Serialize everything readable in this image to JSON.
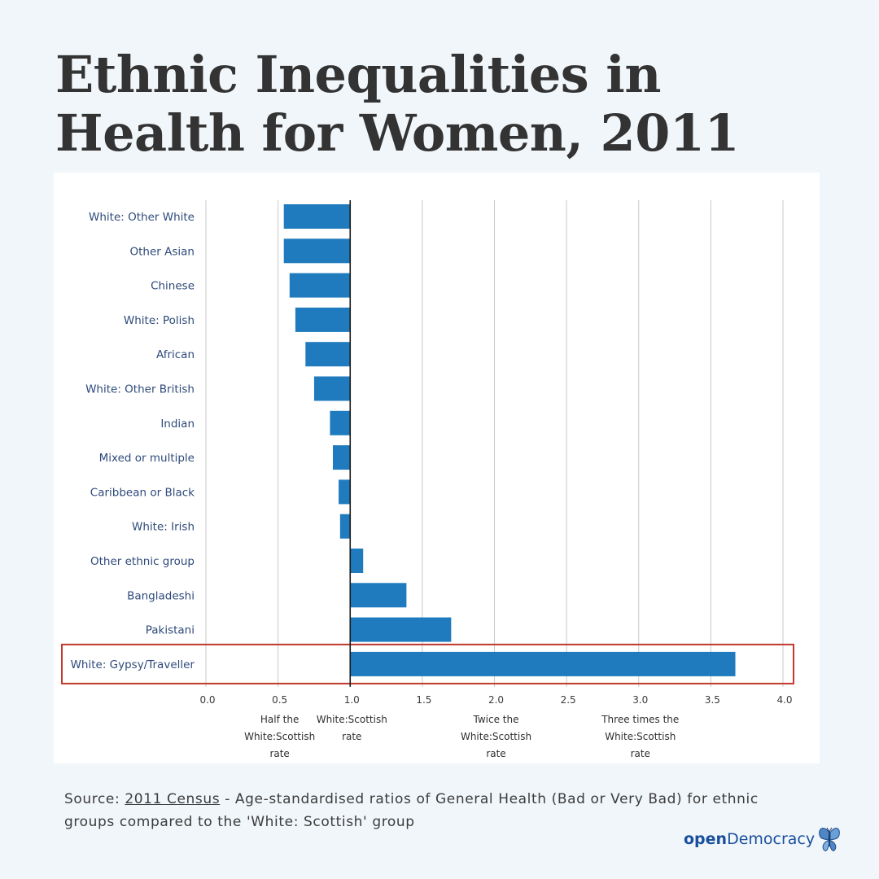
{
  "title": "Ethnic Inequalities in Health for Women, 2011",
  "source": {
    "prefix": "Source: ",
    "link_text": "2011 Census",
    "suffix": " - Age-standardised ratios of General Health (Bad or Very Bad) for ethnic groups compared to the 'White: Scottish' group"
  },
  "logo": {
    "open": "open",
    "democracy": "Democracy",
    "icon": "butterfly-icon"
  },
  "chart_data": {
    "type": "bar",
    "orientation": "horizontal",
    "baseline": 1.0,
    "categories": [
      "White: Other White",
      "Other Asian",
      "Chinese",
      "White: Polish",
      "African",
      "White: Other British",
      "Indian",
      "Mixed or multiple",
      "Caribbean or Black",
      "White: Irish",
      "Other ethnic group",
      "Bangladeshi",
      "Pakistani",
      "White: Gypsy/Traveller"
    ],
    "values": [
      0.54,
      0.54,
      0.58,
      0.62,
      0.69,
      0.75,
      0.86,
      0.88,
      0.92,
      0.93,
      1.09,
      1.39,
      1.7,
      3.67
    ],
    "xlim": [
      0,
      4
    ],
    "xticks": [
      "0.0",
      "0.5",
      "1.0",
      "1.5",
      "2.0",
      "2.5",
      "3.0",
      "3.5",
      "4.0"
    ],
    "grid": true,
    "bar_color": "#1f7bbd",
    "highlight": {
      "category": "White: Gypsy/Traveller",
      "color": "#c0392b"
    },
    "annotations": [
      {
        "x": 0.5,
        "lines": [
          "Half the",
          "White:Scottish",
          "rate"
        ]
      },
      {
        "x": 1.0,
        "lines": [
          "White:Scottish",
          "rate"
        ]
      },
      {
        "x": 2.0,
        "lines": [
          "Twice the",
          "White:Scottish",
          "rate"
        ]
      },
      {
        "x": 3.0,
        "lines": [
          "Three times the",
          "White:Scottish",
          "rate"
        ]
      }
    ]
  }
}
